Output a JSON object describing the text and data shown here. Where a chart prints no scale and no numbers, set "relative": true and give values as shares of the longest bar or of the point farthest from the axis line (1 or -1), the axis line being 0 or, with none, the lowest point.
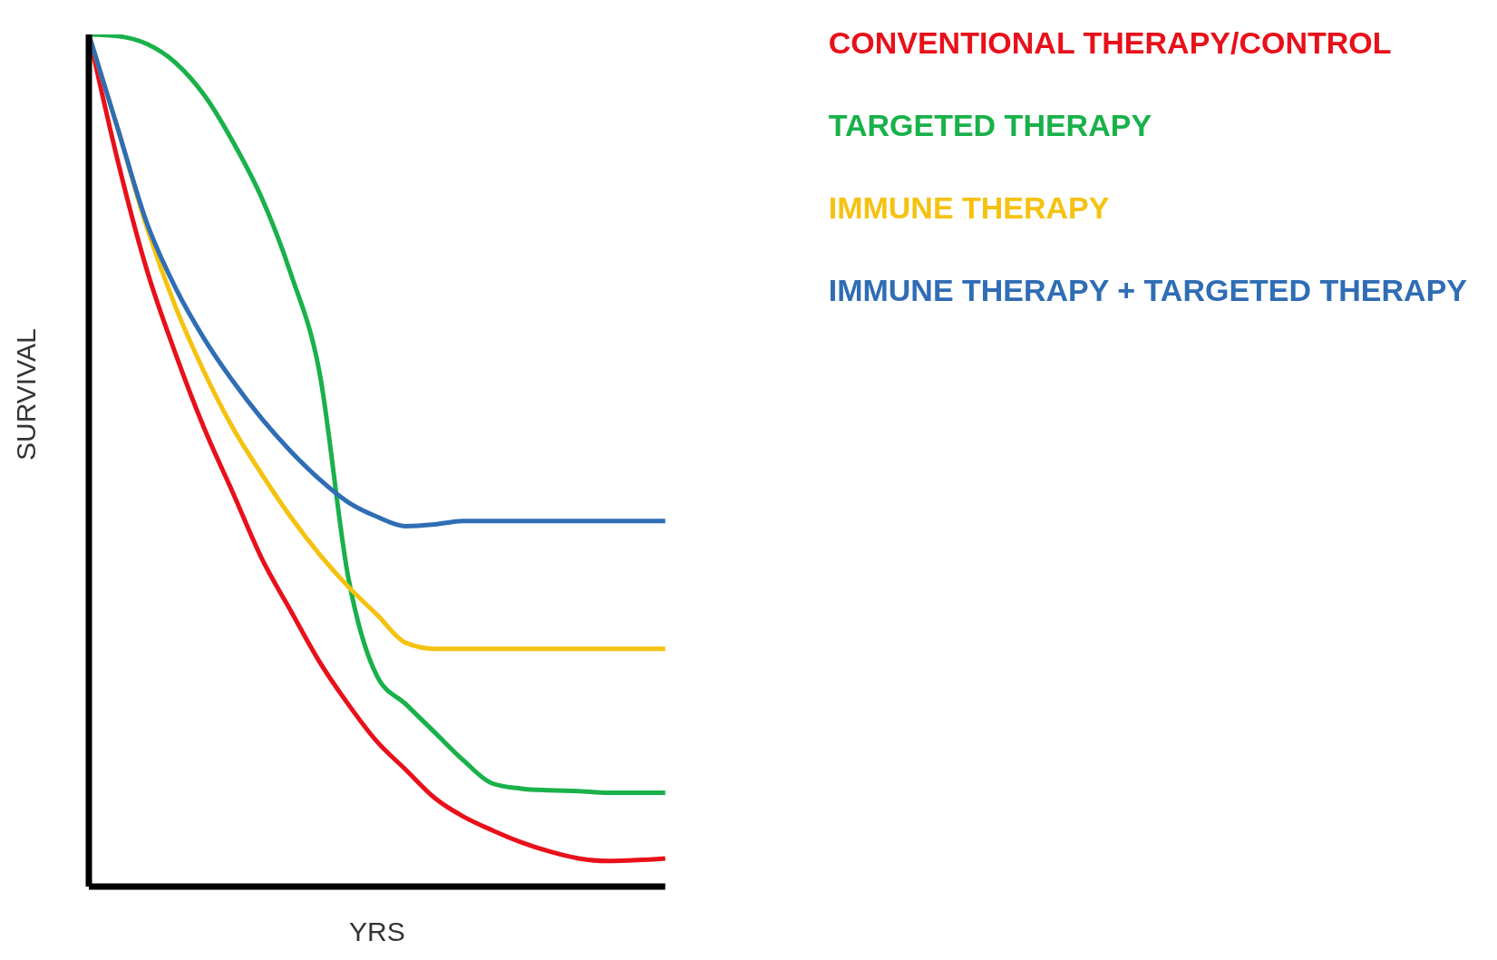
{
  "chart_data": {
    "type": "line",
    "relative": true,
    "xlabel": "YRS",
    "ylabel": "SURVIVAL",
    "legend": "top right",
    "marker": "none",
    "categories": [
      null,
      null,
      null,
      null,
      null,
      null,
      null,
      null,
      null,
      null,
      null,
      null,
      null,
      null,
      null,
      null,
      null,
      null,
      null,
      null,
      null
    ],
    "series": [
      {
        "name": "CONVENTIONAL THERAPY/CONTROL",
        "color": "#e8101a",
        "values": [
          1,
          0.852,
          0.725,
          0.626,
          0.538,
          0.462,
          0.385,
          0.324,
          0.264,
          0.214,
          0.17,
          0.137,
          0.104,
          0.082,
          0.066,
          0.052,
          0.041,
          0.033,
          0.03,
          0.031,
          0.033
        ]
      },
      {
        "name": "TARGETED THERAPY",
        "color": "#19b14a",
        "values": [
          1,
          0.998,
          0.989,
          0.967,
          0.929,
          0.874,
          0.808,
          0.72,
          0.604,
          0.363,
          0.247,
          0.214,
          0.181,
          0.148,
          0.121,
          0.115,
          0.113,
          0.112,
          0.11,
          0.11,
          0.11
        ]
      },
      {
        "name": "IMMUNE THERAPY",
        "color": "#f5c211",
        "values": [
          1,
          0.89,
          0.775,
          0.681,
          0.604,
          0.538,
          0.484,
          0.434,
          0.39,
          0.352,
          0.319,
          0.286,
          0.279,
          0.279,
          0.279,
          0.279,
          0.279,
          0.279,
          0.279,
          0.279,
          0.279
        ]
      },
      {
        "name": "IMMUNE THERAPY + TARGETED THERAPY",
        "color": "#2f6db5",
        "values": [
          1,
          0.89,
          0.78,
          0.703,
          0.643,
          0.593,
          0.549,
          0.511,
          0.478,
          0.451,
          0.434,
          0.423,
          0.425,
          0.429,
          0.429,
          0.429,
          0.429,
          0.429,
          0.429,
          0.429,
          0.429
        ]
      }
    ]
  }
}
